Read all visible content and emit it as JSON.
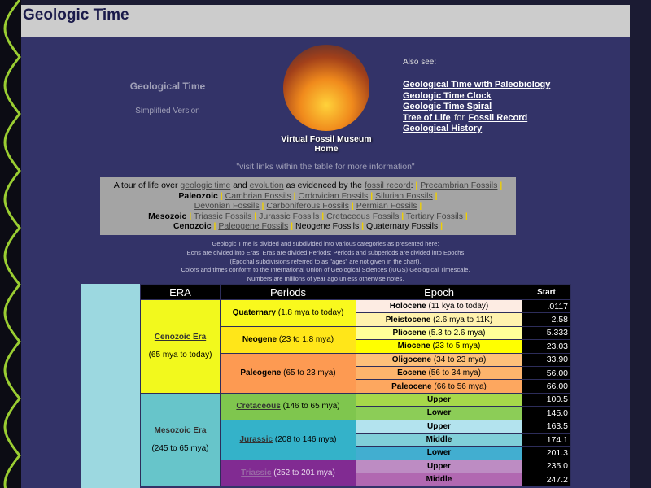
{
  "header": {
    "title": "Geologic Time"
  },
  "intro": {
    "title": "Geological Time",
    "subtitle": "Simplified Version",
    "logo_caption_1": "Virtual Fossil Museum",
    "logo_caption_2": "Home"
  },
  "also_see": {
    "label": "Also see:",
    "links": [
      "Geological Time with Paleobiology",
      "Geologic Time Clock",
      "Geologic Time Spiral"
    ],
    "tree": "Tree of Life",
    "for": "for",
    "fossil_record": "Fossil Record",
    "history": "Geological History"
  },
  "visit": "\"visit links within the table for more information\"",
  "tour": {
    "t1": "A tour of life over",
    "l1": "geologic time",
    "t2": "and",
    "l2": "evolution",
    "t3": "as evidenced by the",
    "l3": "fossil record",
    "colon": ":",
    "sep": "|",
    "precambrian": "Precambrian Fossils",
    "paleozoic": "Paleozoic",
    "cambrian": "Cambrian Fossils",
    "ordovician": "Ordovician Fossils",
    "silurian": "Silurian Fossils",
    "devonian": "Devonian Fossils",
    "carboniferous": "Carboniferous Fossils",
    "permian": "Permian Fossils",
    "mesozoic": "Mesozoic",
    "triassic": "Triassic Fossils",
    "jurassic": "Jurassic Fossils",
    "cretaceous": "Cretaceous Fossils",
    "tertiary": "Tertiary Fossils",
    "cenozoic": "Cenozoic",
    "paleogene": "Paleogene Fossils",
    "neogene": "Neogene Fossils",
    "quaternary": "Quaternary Fossils"
  },
  "notes": [
    "Geologic Time is divided and subdivided into various categories as presented here:",
    "Eons are divided into Eras; Eras are divided Periods; Periods and subperiods are divided into Epochs",
    "(Epochal subdivisions referred to as \"ages\" are not given in the chart).",
    "Colors and times conform to the International Union of Geological Sciences (IUGS) Geological Timescale.",
    "Numbers are millions of year ago unless otherwise notes."
  ],
  "table": {
    "headers": [
      "ERA",
      "Periods",
      "Epoch",
      "Start"
    ],
    "eras": [
      {
        "name": "Cenozoic Era",
        "range": "(65 mya to today)",
        "color": "#f2f91d"
      },
      {
        "name": "Mesozoic Era",
        "range": "(245 to 65 mya)",
        "color": "#67c5ca"
      }
    ],
    "periods": [
      {
        "name": "Quaternary",
        "range": "(1.8 mya to today)",
        "color": "#f9f91d"
      },
      {
        "name": "Neogene",
        "range": "(23 to 1.8 mya)",
        "color": "#ffe619"
      },
      {
        "name": "Paleogene",
        "range": "(65 to 23 mya)",
        "color": "#fd9a52"
      },
      {
        "name": "Cretaceous",
        "range": "(146 to 65 mya)",
        "color": "#7fc64e"
      },
      {
        "name": "Jurassic",
        "range": "(208 to 146 mya)",
        "color": "#34b2c9"
      },
      {
        "name": "Triassic",
        "range": "(252 to 201 mya)",
        "color": "#812b92"
      }
    ],
    "epochs": [
      {
        "name": "Holocene",
        "range": "(11 kya to today)",
        "start": ".0117",
        "color": "#fdece3"
      },
      {
        "name": "Pleistocene",
        "range": "(2.6 mya to 11K)",
        "start": "2.58",
        "color": "#fff2ae"
      },
      {
        "name": "Pliocene",
        "range": "(5.3 to 2.6 mya)",
        "start": "5.333",
        "color": "#ffff99"
      },
      {
        "name": "Miocene",
        "range": "(23 to 5 mya)",
        "start": "23.03",
        "color": "#ffff00"
      },
      {
        "name": "Oligocene",
        "range": "(34 to 23 mya)",
        "start": "33.90",
        "color": "#fdc07a"
      },
      {
        "name": "Eocene",
        "range": "(56 to 34 mya)",
        "start": "56.00",
        "color": "#fdb46c"
      },
      {
        "name": "Paleocene",
        "range": "(66 to 56 mya)",
        "start": "66.00",
        "color": "#fda75f"
      },
      {
        "name": "Upper",
        "range": "",
        "start": "100.5",
        "color": "#a6d84a"
      },
      {
        "name": "Lower",
        "range": "",
        "start": "145.0",
        "color": "#8ccd57"
      },
      {
        "name": "Upper",
        "range": "",
        "start": "163.5",
        "color": "#b3e3ee"
      },
      {
        "name": "Middle",
        "range": "",
        "start": "174.1",
        "color": "#80cfd8"
      },
      {
        "name": "Lower",
        "range": "",
        "start": "201.3",
        "color": "#42aed0"
      },
      {
        "name": "Upper",
        "range": "",
        "start": "235.0",
        "color": "#bd8cc3"
      },
      {
        "name": "Middle",
        "range": "",
        "start": "247.2",
        "color": "#b168b1"
      }
    ]
  }
}
